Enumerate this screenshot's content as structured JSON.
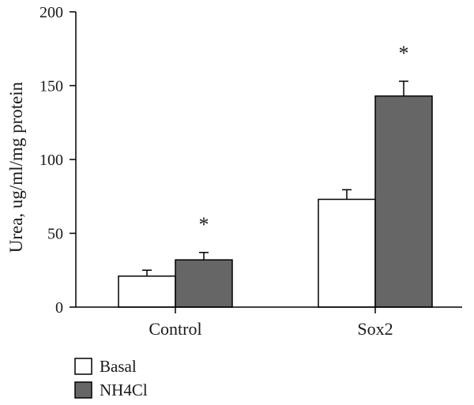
{
  "chart_data": {
    "type": "bar",
    "categories": [
      "Control",
      "Sox2"
    ],
    "series": [
      {
        "name": "Basal",
        "values": [
          21,
          73
        ],
        "errors": [
          4,
          6.5
        ],
        "color": "#ffffff"
      },
      {
        "name": "NH4Cl",
        "values": [
          32,
          143
        ],
        "errors": [
          5,
          10
        ],
        "color": "#666666"
      }
    ],
    "ylabel": "Urea, ug/ml/mg protein",
    "ylim": [
      0,
      200
    ],
    "yticks": [
      0,
      50,
      100,
      150,
      200
    ],
    "annotations": [
      {
        "text": "*",
        "category_index": 0,
        "series_index": 1
      },
      {
        "text": "*",
        "category_index": 1,
        "series_index": 1
      }
    ],
    "legend": "bottom-left",
    "grid": false
  }
}
